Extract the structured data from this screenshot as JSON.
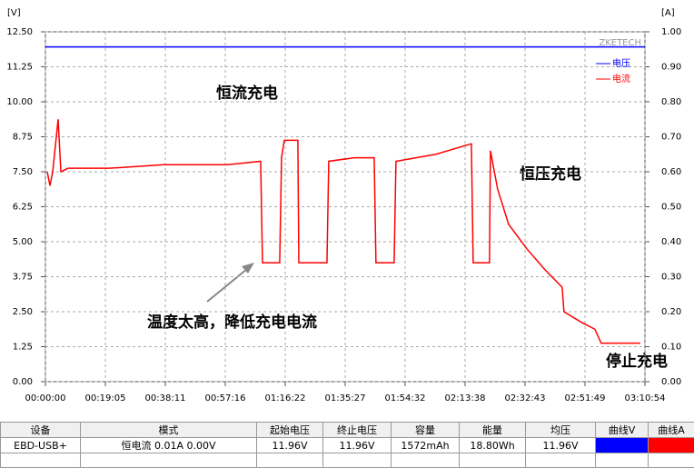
{
  "chart_data": {
    "type": "line",
    "y_unit": "[V]",
    "y2_unit": "[A]",
    "watermark": "ZKETECH",
    "xlim": [
      0,
      11454
    ],
    "xticks": [
      {
        "value": 0,
        "label": "00:00:00"
      },
      {
        "value": 1145,
        "label": "00:19:05"
      },
      {
        "value": 2291,
        "label": "00:38:11"
      },
      {
        "value": 3436,
        "label": "00:57:16"
      },
      {
        "value": 4582,
        "label": "01:16:22"
      },
      {
        "value": 5727,
        "label": "01:35:27"
      },
      {
        "value": 6872,
        "label": "01:54:32"
      },
      {
        "value": 8018,
        "label": "02:13:38"
      },
      {
        "value": 9163,
        "label": "02:32:43"
      },
      {
        "value": 10309,
        "label": "02:51:49"
      },
      {
        "value": 11454,
        "label": "03:10:54"
      }
    ],
    "ylim": [
      0,
      12.5
    ],
    "yticks": [
      {
        "value": 0,
        "label": "0.00"
      },
      {
        "value": 1.25,
        "label": "1.25"
      },
      {
        "value": 2.5,
        "label": "2.50"
      },
      {
        "value": 3.75,
        "label": "3.75"
      },
      {
        "value": 5,
        "label": "5.00"
      },
      {
        "value": 6.25,
        "label": "6.25"
      },
      {
        "value": 7.5,
        "label": "7.50"
      },
      {
        "value": 8.75,
        "label": "8.75"
      },
      {
        "value": 10,
        "label": "10.00"
      },
      {
        "value": 11.25,
        "label": "11.25"
      },
      {
        "value": 12.5,
        "label": "12.50"
      }
    ],
    "y2lim": [
      0,
      1
    ],
    "y2ticks": [
      {
        "value": 0,
        "label": "0.00"
      },
      {
        "value": 0.1,
        "label": "0.10"
      },
      {
        "value": 0.2,
        "label": "0.20"
      },
      {
        "value": 0.3,
        "label": "0.30"
      },
      {
        "value": 0.4,
        "label": "0.40"
      },
      {
        "value": 0.5,
        "label": "0.50"
      },
      {
        "value": 0.6,
        "label": "0.60"
      },
      {
        "value": 0.7,
        "label": "0.70"
      },
      {
        "value": 0.8,
        "label": "0.80"
      },
      {
        "value": 0.9,
        "label": "0.90"
      },
      {
        "value": 1,
        "label": "1.00"
      }
    ],
    "grid": true,
    "legend": "top-right",
    "series": [
      {
        "name": "电压",
        "color": "#0000ff",
        "x": [
          0,
          11454
        ],
        "values": [
          11.96,
          11.96
        ]
      },
      {
        "name": "电流",
        "color": "#ff0000",
        "axis": "y2",
        "x": [
          35,
          87,
          139,
          243,
          295,
          434,
          1215,
          2256,
          3470,
          4112,
          4147,
          4476,
          4511,
          4563,
          4823,
          4841,
          5379,
          5413,
          5899,
          6281,
          6315,
          6662,
          6697,
          7461,
          8138,
          8172,
          8484,
          8502,
          8640,
          8849,
          9196,
          9543,
          9872,
          9907,
          10237,
          10497,
          10618,
          11364
        ],
        "values": [
          0.6,
          0.56,
          0.6,
          0.75,
          0.6,
          0.61,
          0.61,
          0.62,
          0.62,
          0.63,
          0.34,
          0.34,
          0.64,
          0.69,
          0.69,
          0.34,
          0.34,
          0.63,
          0.64,
          0.64,
          0.34,
          0.34,
          0.63,
          0.65,
          0.68,
          0.34,
          0.34,
          0.66,
          0.55,
          0.45,
          0.38,
          0.32,
          0.27,
          0.2,
          0.17,
          0.15,
          0.11,
          0.11
        ]
      }
    ],
    "annotations": [
      "恒流充电",
      "恒压充电",
      "温度太高，降低充电电流",
      "停止充电"
    ]
  },
  "table": {
    "headers": [
      "设备",
      "模式",
      "起始电压",
      "终止电压",
      "容量",
      "能量",
      "均压",
      "曲线V",
      "曲线A"
    ],
    "rows": [
      [
        "EBD-USB+",
        "恒电流 0.01A 0.00V",
        "11.96V",
        "11.96V",
        "1572mAh",
        "18.80Wh",
        "11.96V"
      ]
    ]
  }
}
